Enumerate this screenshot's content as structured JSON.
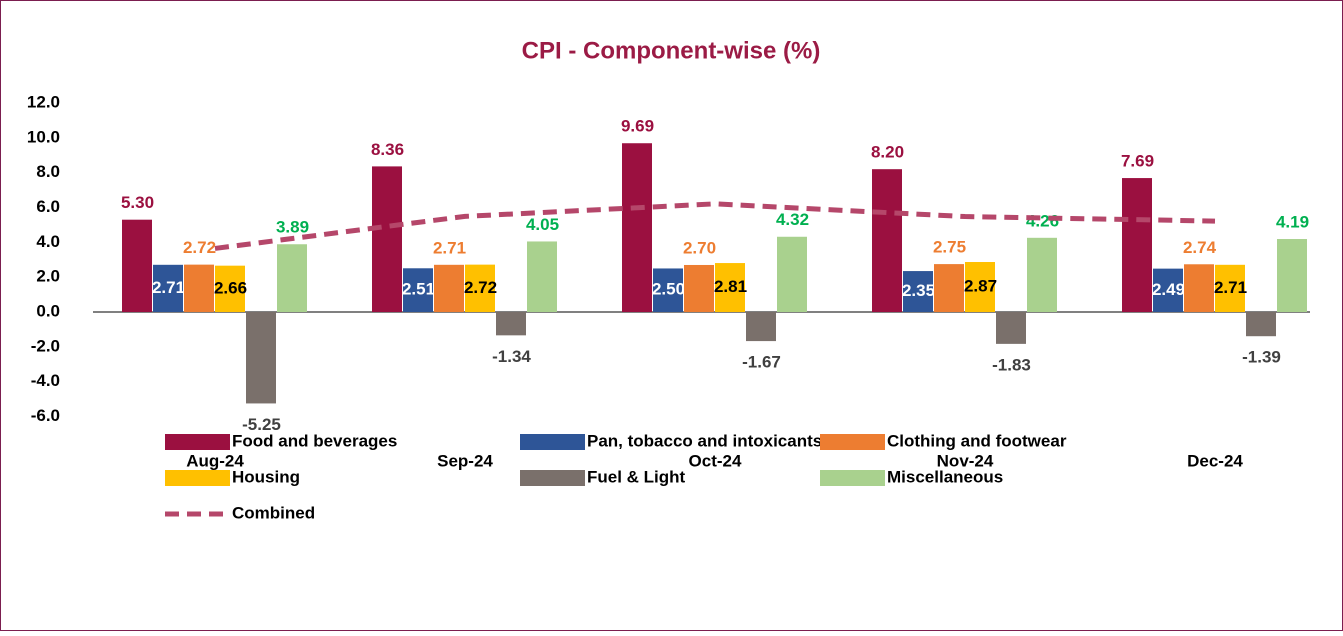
{
  "chart_data": {
    "type": "bar",
    "title": "CPI - Component-wise (%)",
    "categories": [
      "Aug-24",
      "Sep-24",
      "Oct-24",
      "Nov-24",
      "Dec-24"
    ],
    "ylim": [
      -6,
      12
    ],
    "yticks": [
      {
        "value": -6,
        "label": "-6.0"
      },
      {
        "value": -4,
        "label": "-4.0"
      },
      {
        "value": -2,
        "label": "-2.0"
      },
      {
        "value": 0,
        "label": "0.0"
      },
      {
        "value": 2,
        "label": "2.0"
      },
      {
        "value": 4,
        "label": "4.0"
      },
      {
        "value": 6,
        "label": "6.0"
      },
      {
        "value": 8,
        "label": "8.0"
      },
      {
        "value": 10,
        "label": "10.0"
      },
      {
        "value": 12,
        "label": "12.0"
      }
    ],
    "grid": false,
    "legend": "bottom",
    "series": [
      {
        "name": "Food and beverages",
        "color": "#9b1040",
        "label_color": "#9b1040",
        "label_position": "above",
        "values": [
          5.3,
          8.36,
          9.69,
          8.2,
          7.69
        ],
        "value_labels": [
          "5.30",
          "8.36",
          "9.69",
          "8.20",
          "7.69"
        ]
      },
      {
        "name": "Pan, tobacco and intoxicants",
        "color": "#2e5597",
        "label_color": "#ffffff",
        "label_position": "center",
        "values": [
          2.71,
          2.51,
          2.5,
          2.35,
          2.49
        ],
        "value_labels": [
          "2.71",
          "2.51",
          "2.50",
          "2.35",
          "2.49"
        ]
      },
      {
        "name": "Clothing and footwear",
        "color": "#ed7d31",
        "label_color": "#ed7d31",
        "label_position": "above",
        "values": [
          2.72,
          2.71,
          2.7,
          2.75,
          2.74
        ],
        "value_labels": [
          "2.72",
          "2.71",
          "2.70",
          "2.75",
          "2.74"
        ]
      },
      {
        "name": "Housing",
        "color": "#ffc000",
        "label_color": "#000000",
        "label_position": "center",
        "values": [
          2.66,
          2.72,
          2.81,
          2.87,
          2.71
        ],
        "value_labels": [
          "2.66",
          "2.72",
          "2.81",
          "2.87",
          "2.71"
        ]
      },
      {
        "name": "Fuel & Light",
        "color": "#7a706b",
        "label_color": "#404040",
        "label_position": "below",
        "values": [
          -5.25,
          -1.34,
          -1.67,
          -1.83,
          -1.39
        ],
        "value_labels": [
          "-5.25",
          "-1.34",
          "-1.67",
          "-1.83",
          "-1.39"
        ]
      },
      {
        "name": "Miscellaneous",
        "color": "#a9d18e",
        "label_color": "#00b050",
        "label_position": "above",
        "values": [
          3.89,
          4.05,
          4.32,
          4.26,
          4.19
        ],
        "value_labels": [
          "3.89",
          "4.05",
          "4.32",
          "4.26",
          "4.19"
        ]
      },
      {
        "name": "Combined",
        "type": "line",
        "dashed": true,
        "color": "#b5476a",
        "values": [
          3.65,
          5.49,
          6.21,
          5.48,
          5.22
        ]
      }
    ]
  }
}
